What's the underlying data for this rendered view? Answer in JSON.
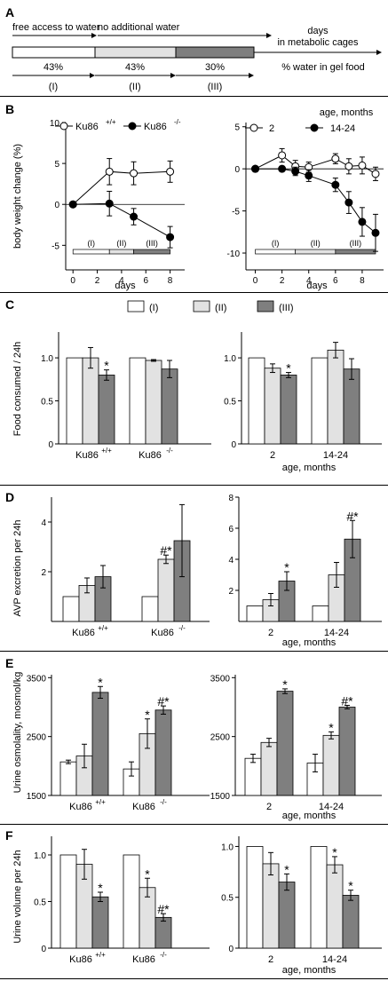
{
  "colors": {
    "I": "#ffffff",
    "II": "#e2e2e2",
    "III": "#7f7f7f",
    "line": "#000000"
  },
  "panels": [
    {
      "letter": "A"
    },
    {
      "letter": "B"
    },
    {
      "letter": "C"
    },
    {
      "letter": "D"
    },
    {
      "letter": "E"
    },
    {
      "letter": "F"
    }
  ],
  "schematic": {
    "labels_top": [
      "free access to water",
      "no additional water",
      "days",
      "in metabolic cages"
    ],
    "percent_labels": [
      "43%",
      "43%",
      "30%"
    ],
    "percent_caption": "% water in gel food",
    "phases": [
      "(I)",
      "(II)",
      "(III)"
    ]
  },
  "chart_data": [
    {
      "id": "B_left",
      "type": "line",
      "ylabel": "body weight change (%)",
      "xlabel": "days",
      "xlim": [
        -0.6,
        9.2
      ],
      "ylim": [
        -8,
        10
      ],
      "xticks": [
        "0",
        "2",
        "4",
        "6",
        "8"
      ],
      "yticks": [
        "10",
        "5",
        "0",
        "-5"
      ],
      "legend": [
        "Ku86",
        "+/+",
        "Ku86",
        "-/-"
      ],
      "series": [
        {
          "name": "Ku86+/+",
          "marker": "open",
          "x": [
            0,
            3,
            5,
            8
          ],
          "y": [
            0,
            4,
            3.8,
            4
          ],
          "err": [
            0,
            1.6,
            1.4,
            1.3
          ]
        },
        {
          "name": "Ku86-/-",
          "marker": "filled",
          "x": [
            0,
            3,
            5,
            8
          ],
          "y": [
            0,
            0.1,
            -1.5,
            -4
          ],
          "err": [
            0,
            1.5,
            1,
            1.3
          ]
        }
      ],
      "phase_bar": {
        "labels": [
          "(I)",
          "(II)",
          "(III)"
        ],
        "breaks": [
          0,
          3,
          5,
          8
        ]
      }
    },
    {
      "id": "B_right",
      "type": "line",
      "xlabel": "days",
      "xlim": [
        -0.7,
        9.6
      ],
      "ylim": [
        -12,
        5.5
      ],
      "xticks": [
        "0",
        "2",
        "4",
        "6",
        "8"
      ],
      "yticks": [
        "5",
        "0",
        "-5",
        "-10"
      ],
      "legend_title": "age, months",
      "legend": [
        "2",
        "14-24"
      ],
      "series": [
        {
          "name": "2",
          "marker": "open",
          "x": [
            0,
            2,
            3,
            4,
            6,
            7,
            8,
            9
          ],
          "y": [
            0,
            1.6,
            0.3,
            0.2,
            1.2,
            0.3,
            0.4,
            -0.6
          ],
          "err": [
            0,
            0.8,
            0.7,
            0.6,
            0.6,
            0.9,
            1,
            0.8
          ]
        },
        {
          "name": "14-24",
          "marker": "filled",
          "x": [
            0,
            2,
            3,
            4,
            6,
            7,
            8,
            9
          ],
          "y": [
            0,
            0,
            -0.3,
            -0.8,
            -1.9,
            -4,
            -6.3,
            -7.6
          ],
          "err": [
            0,
            0.3,
            0.5,
            0.7,
            0.8,
            1.3,
            1.7,
            2.2
          ]
        }
      ],
      "phase_bar": {
        "labels": [
          "(I)",
          "(II)",
          "(III)"
        ],
        "breaks": [
          0,
          3,
          6,
          9
        ]
      }
    },
    {
      "id": "C_left",
      "type": "bar",
      "ylabel": "Food consumed / 24h",
      "ylim": [
        0,
        1.3
      ],
      "yticks": [
        "0",
        "0.5",
        "1.0"
      ],
      "series_names": [
        "(I)",
        "(II)",
        "(III)"
      ],
      "groups": [
        {
          "label": "Ku86",
          "sup": "+/+",
          "values": [
            1.0,
            1.0,
            0.8
          ],
          "err": [
            0,
            0.12,
            0.06
          ],
          "marks": [
            "",
            "",
            "*"
          ]
        },
        {
          "label": "Ku86",
          "sup": "-/-",
          "values": [
            1.0,
            0.97,
            0.87
          ],
          "err": [
            0,
            0.01,
            0.1
          ],
          "marks": [
            "",
            "",
            ""
          ]
        }
      ]
    },
    {
      "id": "C_right",
      "type": "bar",
      "ylim": [
        0,
        1.3
      ],
      "yticks": [
        "0",
        "0.5",
        "1.0"
      ],
      "xlabel": "age, months",
      "groups": [
        {
          "label": "2",
          "values": [
            1.0,
            0.88,
            0.8
          ],
          "err": [
            0,
            0.05,
            0.03
          ],
          "marks": [
            "",
            "",
            "*"
          ]
        },
        {
          "label": "14-24",
          "values": [
            1.0,
            1.09,
            0.87
          ],
          "err": [
            0,
            0.09,
            0.12
          ],
          "marks": [
            "",
            "",
            ""
          ]
        }
      ]
    },
    {
      "id": "D_left",
      "type": "bar",
      "ylabel": "AVP excretion per 24h",
      "ylim": [
        0,
        5
      ],
      "yticks": [
        "2",
        "4"
      ],
      "groups": [
        {
          "label": "Ku86",
          "sup": "+/+",
          "values": [
            1.0,
            1.45,
            1.8
          ],
          "err": [
            0,
            0.3,
            0.45
          ],
          "marks": [
            "",
            "",
            ""
          ]
        },
        {
          "label": "Ku86",
          "sup": "-/-",
          "values": [
            1.0,
            2.5,
            3.25
          ],
          "err": [
            0,
            0.17,
            1.45
          ],
          "marks": [
            "",
            "#*",
            ""
          ]
        }
      ]
    },
    {
      "id": "D_right",
      "type": "bar",
      "xlabel": "age, months",
      "ylim": [
        0,
        8
      ],
      "yticks": [
        "2",
        "4",
        "6",
        "8"
      ],
      "groups": [
        {
          "label": "2",
          "values": [
            1.0,
            1.4,
            2.6
          ],
          "err": [
            0,
            0.4,
            0.6
          ],
          "marks": [
            "",
            "",
            "*"
          ]
        },
        {
          "label": "14-24",
          "values": [
            1.0,
            3.0,
            5.3
          ],
          "err": [
            0,
            0.8,
            1.2
          ],
          "marks": [
            "",
            "",
            "#*"
          ]
        }
      ]
    },
    {
      "id": "E_left",
      "type": "bar",
      "ylabel": "Urine osmolality, mosmol/kg",
      "ylim": [
        1500,
        3550
      ],
      "yticks": [
        "1500",
        "2500",
        "3500"
      ],
      "groups": [
        {
          "label": "Ku86",
          "sup": "+/+",
          "values": [
            2070,
            2170,
            3250
          ],
          "err": [
            30,
            200,
            100
          ],
          "marks": [
            "",
            "",
            "*"
          ]
        },
        {
          "label": "Ku86",
          "sup": "-/-",
          "values": [
            1950,
            2550,
            2950
          ],
          "err": [
            120,
            250,
            70
          ],
          "marks": [
            "",
            "*",
            "#*"
          ]
        }
      ]
    },
    {
      "id": "E_right",
      "type": "bar",
      "xlabel": "age, months",
      "ylim": [
        1500,
        3550
      ],
      "yticks": [
        "1500",
        "2500",
        "3500"
      ],
      "groups": [
        {
          "label": "2",
          "values": [
            2130,
            2400,
            3270
          ],
          "err": [
            70,
            70,
            40
          ],
          "marks": [
            "",
            "",
            "*"
          ]
        },
        {
          "label": "14-24",
          "values": [
            2050,
            2520,
            3000
          ],
          "err": [
            150,
            60,
            30
          ],
          "marks": [
            "",
            "*",
            "#*"
          ]
        }
      ]
    },
    {
      "id": "F_left",
      "type": "bar",
      "ylabel": "Urine volume per 24h",
      "ylim": [
        0,
        1.2
      ],
      "yticks": [
        "0",
        "0.5",
        "1.0"
      ],
      "groups": [
        {
          "label": "Ku86",
          "sup": "+/+",
          "values": [
            1.0,
            0.9,
            0.55
          ],
          "err": [
            0,
            0.16,
            0.05
          ],
          "marks": [
            "",
            "",
            "*"
          ]
        },
        {
          "label": "Ku86",
          "sup": "-/-",
          "values": [
            1.0,
            0.65,
            0.33
          ],
          "err": [
            0,
            0.1,
            0.04
          ],
          "marks": [
            "",
            "*",
            "#*"
          ]
        }
      ]
    },
    {
      "id": "F_right",
      "type": "bar",
      "xlabel": "age, months",
      "ylim": [
        0,
        1.1
      ],
      "yticks": [
        "0",
        "0.5",
        "1.0"
      ],
      "groups": [
        {
          "label": "2",
          "values": [
            1.0,
            0.83,
            0.65
          ],
          "err": [
            0,
            0.11,
            0.08
          ],
          "marks": [
            "",
            "",
            "*"
          ]
        },
        {
          "label": "14-24",
          "values": [
            1.0,
            0.82,
            0.52
          ],
          "err": [
            0,
            0.08,
            0.05
          ],
          "marks": [
            "",
            "*",
            "*"
          ]
        }
      ]
    }
  ]
}
